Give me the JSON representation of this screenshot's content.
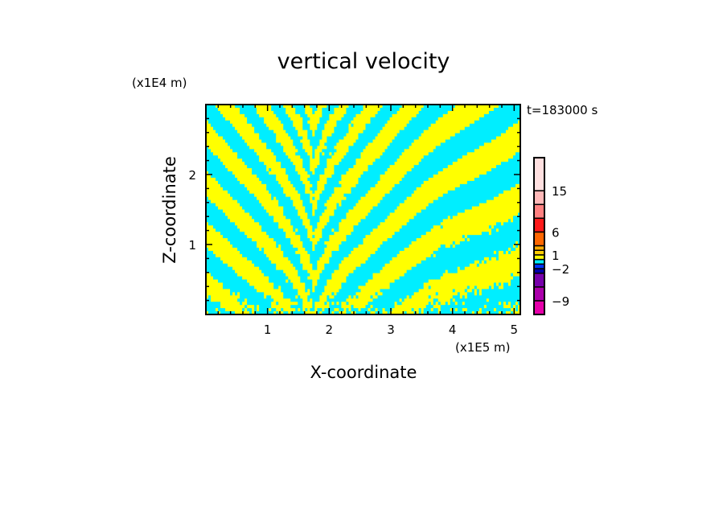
{
  "chart_data": {
    "type": "heatmap",
    "title": "vertical velocity",
    "xlabel": "X-coordinate",
    "ylabel": "Z-coordinate",
    "x_unit": "(x1E5 m)",
    "y_unit": "(x1E4 m)",
    "time_label": "t=183000 s",
    "xlim": [
      0,
      5.1
    ],
    "ylim": [
      0,
      3.0
    ],
    "x_ticks": [
      "1",
      "2",
      "3",
      "4",
      "5"
    ],
    "y_ticks": [
      "1",
      "2"
    ],
    "grid": false,
    "field_colors": {
      "positive": "#ffff00",
      "negative": "#00eeff"
    },
    "colorbar": {
      "levels": [
        -12,
        -9,
        -6,
        -3,
        -2,
        -1,
        0,
        1,
        2,
        3,
        6,
        9,
        12,
        15
      ],
      "colors": [
        "#e600aa",
        "#aa00aa",
        "#7700aa",
        "#0000aa",
        "#0033ff",
        "#00eeff",
        "#ffff00",
        "#ffcc00",
        "#ffaa00",
        "#ff6600",
        "#ff1a1a",
        "#ff8080",
        "#ffb8b8",
        "#ffe0e0"
      ],
      "tick_labels": [
        "-9",
        "-2",
        "1",
        "6",
        "15"
      ],
      "tick_values": [
        -9,
        -2,
        1,
        6,
        15
      ]
    }
  }
}
